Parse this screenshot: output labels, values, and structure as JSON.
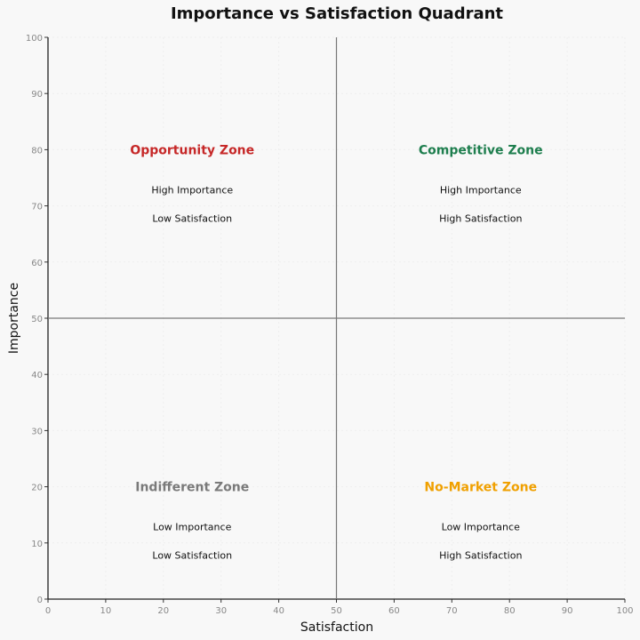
{
  "chart_data": {
    "type": "scatter",
    "title": "Importance vs Satisfaction Quadrant",
    "xlabel": "Satisfaction",
    "ylabel": "Importance",
    "xlim": [
      0,
      100
    ],
    "ylim": [
      0,
      100
    ],
    "xticks": [
      0,
      10,
      20,
      30,
      40,
      50,
      60,
      70,
      80,
      90,
      100
    ],
    "yticks": [
      0,
      10,
      20,
      30,
      40,
      50,
      60,
      70,
      80,
      90,
      100
    ],
    "grid": true,
    "divider_x": 50,
    "divider_y": 50,
    "quadrants": [
      {
        "title": "Opportunity Zone",
        "line1": "High Importance",
        "line2": "Low Satisfaction",
        "x": 25,
        "y": 80,
        "color": "#c62828"
      },
      {
        "title": "Competitive Zone",
        "line1": "High Importance",
        "line2": "High Satisfaction",
        "x": 75,
        "y": 80,
        "color": "#1e7e4e"
      },
      {
        "title": "Indifferent Zone",
        "line1": "Low Importance",
        "line2": "Low Satisfaction",
        "x": 25,
        "y": 20,
        "color": "#7a7a7a"
      },
      {
        "title": "No-Market Zone",
        "line1": "Low Importance",
        "line2": "High Satisfaction",
        "x": 75,
        "y": 20,
        "color": "#f0a000"
      }
    ]
  }
}
